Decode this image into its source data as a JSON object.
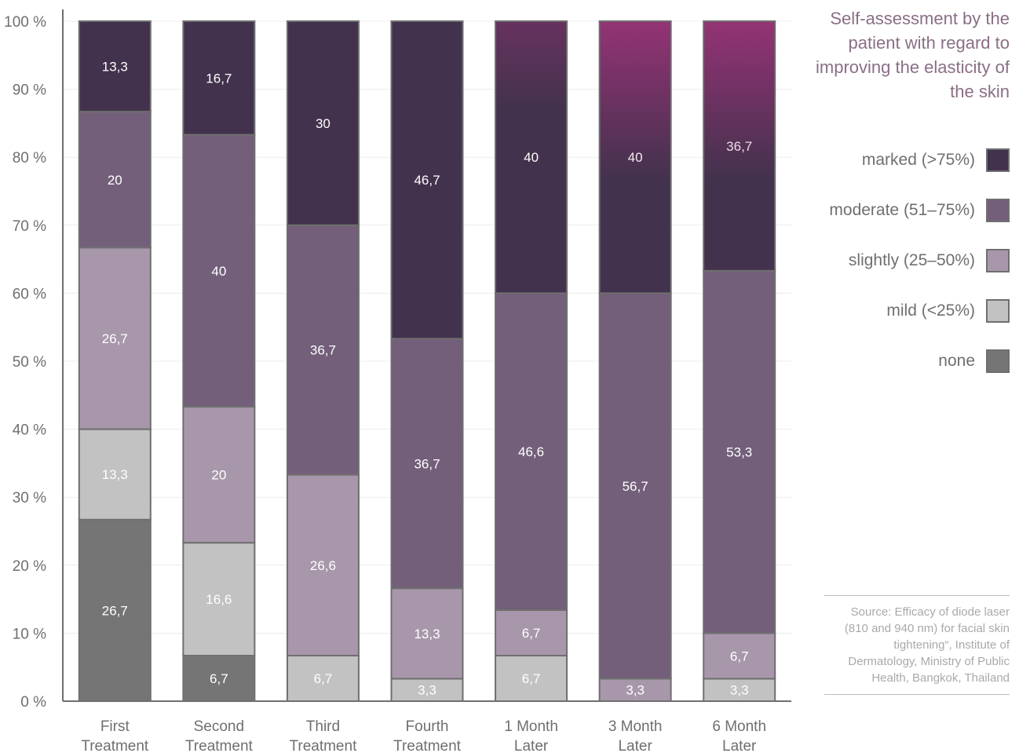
{
  "title": "Self-assessment by the patient with regard to improving the elasticity of the skin",
  "legend": [
    {
      "label": "marked (>75%)",
      "color": "#43324d"
    },
    {
      "label": "moderate (51–75%)",
      "color": "#735f7a"
    },
    {
      "label": "slightly (25–50%)",
      "color": "#a897ab"
    },
    {
      "label": "mild (<25%)",
      "color": "#c1c2c1"
    },
    {
      "label": "none",
      "color": "#757575"
    }
  ],
  "source": "Source: Efficacy of diode laser (810 and 940 nm) for facial skin tightening“, Institute of Dermatology, Ministry of Public Health, Bangkok, Thailand",
  "chart_data": {
    "type": "bar",
    "stacked": true,
    "categories": [
      "First Treatment",
      "Second Treatment",
      "Third Treatment",
      "Fourth Treatment",
      "1 Month Later",
      "3 Month Later",
      "6 Month Later"
    ],
    "yticks": [
      "0 %",
      "10 %",
      "20 %",
      "30 %",
      "40 %",
      "50 %",
      "60 %",
      "70 %",
      "80 %",
      "90 %",
      "100 %"
    ],
    "ylim": [
      0,
      100
    ],
    "grid": true,
    "legend_position": "right",
    "series": [
      {
        "name": "none",
        "color": "#757575",
        "values": [
          26.7,
          6.7,
          0,
          0,
          0,
          0,
          0
        ],
        "labels": [
          "26,7",
          "6,7",
          "",
          "",
          "",
          "",
          ""
        ]
      },
      {
        "name": "mild (<25%)",
        "color": "#c1c2c1",
        "values": [
          13.3,
          16.6,
          6.7,
          3.3,
          6.7,
          0,
          3.3
        ],
        "labels": [
          "13,3",
          "16,6",
          "6,7",
          "3,3",
          "6,7",
          "",
          "3,3"
        ]
      },
      {
        "name": "slightly (25–50%)",
        "color": "#a897ab",
        "values": [
          26.7,
          20,
          26.6,
          13.3,
          6.7,
          3.3,
          6.7
        ],
        "labels": [
          "26,7",
          "20",
          "26,6",
          "13,3",
          "6,7",
          "3,3",
          "6,7"
        ]
      },
      {
        "name": "moderate (51–75%)",
        "color": "#735f7a",
        "values": [
          20,
          40,
          36.7,
          36.7,
          46.6,
          56.7,
          53.3
        ],
        "labels": [
          "20",
          "40",
          "36,7",
          "36,7",
          "46,6",
          "56,7",
          "53,3"
        ]
      },
      {
        "name": "marked (>75%)",
        "color": "#43324d",
        "values": [
          13.3,
          16.7,
          30,
          46.7,
          40,
          40,
          36.7
        ],
        "labels": [
          "13,3",
          "16,7",
          "30",
          "46,7",
          "40",
          "40",
          "36,7"
        ]
      }
    ],
    "highlight_color": "#a8337f"
  }
}
